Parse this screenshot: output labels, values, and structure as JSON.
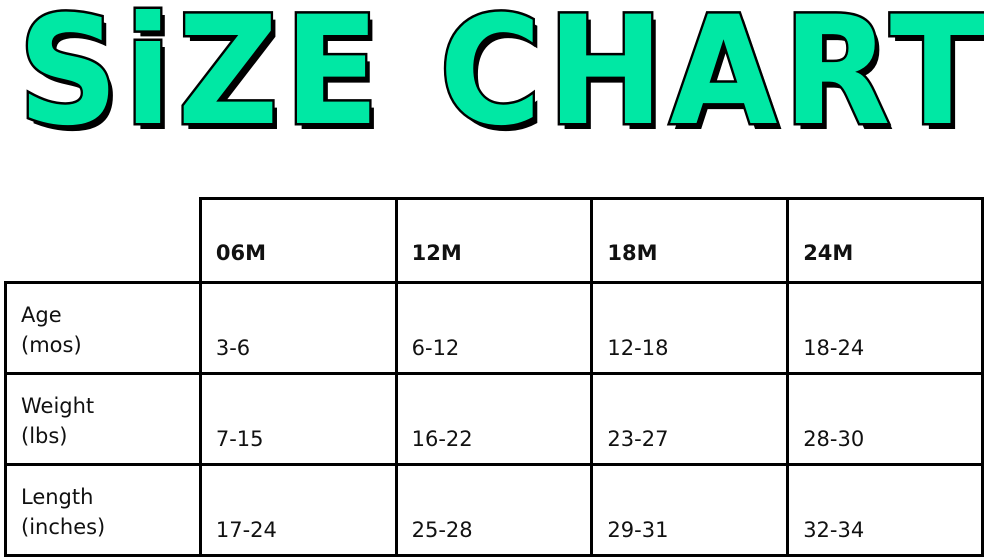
{
  "title": "SiZE CHART",
  "title_color": "#00e8a4",
  "table": {
    "columns": [
      "06M",
      "12M",
      "18M",
      "24M"
    ],
    "rows": [
      {
        "label": "Age",
        "unit": "(mos)",
        "values": [
          "3-6",
          "6-12",
          "12-18",
          "18-24"
        ]
      },
      {
        "label": "Weight",
        "unit": "(lbs)",
        "values": [
          "7-15",
          "16-22",
          "23-27",
          "28-30"
        ]
      },
      {
        "label": "Length",
        "unit": "(inches)",
        "values": [
          "17-24",
          "25-28",
          "29-31",
          "32-34"
        ]
      }
    ]
  }
}
